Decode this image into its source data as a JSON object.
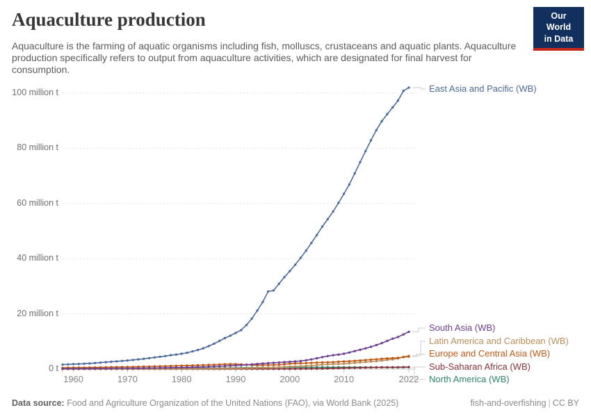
{
  "header": {
    "title": "Aquaculture production",
    "subtitle": "Aquaculture is the farming of aquatic organisms including fish, molluscs, crustaceans and aquatic plants. Aquaculture production specifically refers to output from aquaculture activities, which are designated for final harvest for consumption.",
    "logo": {
      "line1": "Our World",
      "line2": "in Data",
      "bg_color": "#12305E",
      "accent_color": "#C5281C"
    }
  },
  "chart_data": {
    "type": "line",
    "title": "Aquaculture production",
    "unit": "tonnes",
    "grid": "horizontal-dashed",
    "legend_position": "right-of-line-ends",
    "x_range": {
      "start": 1958,
      "end": 2022,
      "step": 1
    },
    "x_ticks": [
      1960,
      1970,
      1980,
      1990,
      2000,
      2010,
      2022
    ],
    "ylim": [
      0,
      105
    ],
    "y_ticks": [
      {
        "value": 0,
        "label": "0 t"
      },
      {
        "value": 20,
        "label": "20 million t"
      },
      {
        "value": 40,
        "label": "40 million t"
      },
      {
        "value": 60,
        "label": "60 million t"
      },
      {
        "value": 80,
        "label": "80 million t"
      },
      {
        "value": 100,
        "label": "100 million t"
      }
    ],
    "y_unit": "million tonnes",
    "series": [
      {
        "name": "East Asia and Pacific (WB)",
        "color": "#4C6A9C",
        "values": [
          1.6,
          1.7,
          1.8,
          1.85,
          1.95,
          2.05,
          2.2,
          2.35,
          2.5,
          2.65,
          2.8,
          2.95,
          3.1,
          3.3,
          3.5,
          3.7,
          3.95,
          4.2,
          4.45,
          4.7,
          5.0,
          5.25,
          5.55,
          5.9,
          6.4,
          6.9,
          7.5,
          8.3,
          9.2,
          10.2,
          11.2,
          12.1,
          13.1,
          14.1,
          16.0,
          18.3,
          21.2,
          24.3,
          28.1,
          28.5,
          30.9,
          33.3,
          35.5,
          37.8,
          40.3,
          42.9,
          45.7,
          48.6,
          51.6,
          54.3,
          57.1,
          60.2,
          63.5,
          66.9,
          70.9,
          75.0,
          79.0,
          82.9,
          86.6,
          89.8,
          92.4,
          94.8,
          97.3,
          100.8,
          102.0
        ]
      },
      {
        "name": "South Asia (WB)",
        "color": "#6D3E91",
        "values": [
          0.12,
          0.12,
          0.13,
          0.14,
          0.15,
          0.16,
          0.17,
          0.18,
          0.19,
          0.21,
          0.22,
          0.24,
          0.26,
          0.28,
          0.3,
          0.33,
          0.36,
          0.39,
          0.42,
          0.45,
          0.48,
          0.52,
          0.56,
          0.61,
          0.66,
          0.72,
          0.78,
          0.85,
          0.93,
          1.02,
          1.11,
          1.2,
          1.3,
          1.41,
          1.55,
          1.7,
          1.85,
          2.0,
          2.15,
          2.25,
          2.37,
          2.5,
          2.62,
          2.75,
          2.9,
          3.18,
          3.5,
          3.9,
          4.3,
          4.7,
          5.0,
          5.25,
          5.55,
          6.0,
          6.5,
          7.0,
          7.5,
          8.05,
          8.7,
          9.4,
          10.2,
          11.0,
          11.6,
          12.55,
          13.5
        ]
      },
      {
        "name": "Latin America and Caribbean (WB)",
        "color": "#BC8E5A",
        "values": [
          0.01,
          0.01,
          0.01,
          0.01,
          0.02,
          0.02,
          0.02,
          0.02,
          0.03,
          0.03,
          0.03,
          0.03,
          0.04,
          0.04,
          0.05,
          0.05,
          0.06,
          0.06,
          0.07,
          0.07,
          0.08,
          0.08,
          0.09,
          0.1,
          0.11,
          0.12,
          0.13,
          0.15,
          0.17,
          0.19,
          0.22,
          0.24,
          0.27,
          0.31,
          0.35,
          0.39,
          0.44,
          0.5,
          0.56,
          0.63,
          0.68,
          0.77,
          0.87,
          0.95,
          1.02,
          1.1,
          1.25,
          1.45,
          1.58,
          1.7,
          1.8,
          1.85,
          1.92,
          2.1,
          2.25,
          2.4,
          2.55,
          2.7,
          2.85,
          3.05,
          3.3,
          3.5,
          3.8,
          4.4,
          4.8
        ]
      },
      {
        "name": "Europe and Central Asia (WB)",
        "color": "#BE5915",
        "values": [
          0.45,
          0.47,
          0.5,
          0.52,
          0.54,
          0.56,
          0.58,
          0.61,
          0.64,
          0.67,
          0.7,
          0.72,
          0.75,
          0.79,
          0.83,
          0.87,
          0.91,
          0.95,
          1.0,
          1.05,
          1.1,
          1.15,
          1.2,
          1.26,
          1.32,
          1.38,
          1.44,
          1.5,
          1.57,
          1.65,
          1.73,
          1.78,
          1.8,
          1.7,
          1.55,
          1.45,
          1.4,
          1.42,
          1.45,
          1.5,
          1.55,
          1.75,
          1.95,
          2.05,
          2.1,
          2.15,
          2.25,
          2.35,
          2.4,
          2.45,
          2.5,
          2.65,
          2.75,
          2.85,
          2.95,
          3.1,
          3.25,
          3.4,
          3.55,
          3.7,
          3.85,
          3.95,
          4.05,
          4.3,
          4.5
        ]
      },
      {
        "name": "Sub-Saharan Africa (WB)",
        "color": "#883039",
        "values": [
          0.01,
          0.01,
          0.01,
          0.01,
          0.01,
          0.01,
          0.01,
          0.01,
          0.01,
          0.01,
          0.01,
          0.01,
          0.01,
          0.01,
          0.02,
          0.02,
          0.02,
          0.02,
          0.02,
          0.02,
          0.02,
          0.02,
          0.02,
          0.02,
          0.03,
          0.03,
          0.03,
          0.03,
          0.03,
          0.03,
          0.04,
          0.04,
          0.04,
          0.04,
          0.04,
          0.04,
          0.04,
          0.04,
          0.05,
          0.05,
          0.05,
          0.05,
          0.06,
          0.07,
          0.08,
          0.09,
          0.1,
          0.12,
          0.15,
          0.2,
          0.24,
          0.3,
          0.36,
          0.4,
          0.42,
          0.46,
          0.5,
          0.55,
          0.57,
          0.6,
          0.62,
          0.64,
          0.65,
          0.7,
          0.72
        ]
      },
      {
        "name": "North America (WB)",
        "color": "#2C8465",
        "values": [
          0.08,
          0.09,
          0.09,
          0.1,
          0.1,
          0.11,
          0.11,
          0.12,
          0.12,
          0.13,
          0.13,
          0.14,
          0.15,
          0.16,
          0.17,
          0.18,
          0.19,
          0.2,
          0.21,
          0.22,
          0.23,
          0.24,
          0.25,
          0.26,
          0.28,
          0.29,
          0.31,
          0.32,
          0.34,
          0.36,
          0.38,
          0.4,
          0.43,
          0.45,
          0.47,
          0.5,
          0.52,
          0.55,
          0.56,
          0.57,
          0.58,
          0.59,
          0.6,
          0.6,
          0.61,
          0.62,
          0.63,
          0.65,
          0.64,
          0.63,
          0.63,
          0.63,
          0.63,
          0.62,
          0.62,
          0.63,
          0.63,
          0.63,
          0.62,
          0.62,
          0.61,
          0.61,
          0.6,
          0.63,
          0.66
        ]
      }
    ]
  },
  "footer": {
    "source_label": "Data source:",
    "source_text": "Food and Agriculture Organization of the United Nations (FAO), via World Bank (2025)",
    "credit_site": "fish-and-overfishing",
    "credit_separator": "|",
    "credit_license": "CC BY"
  }
}
